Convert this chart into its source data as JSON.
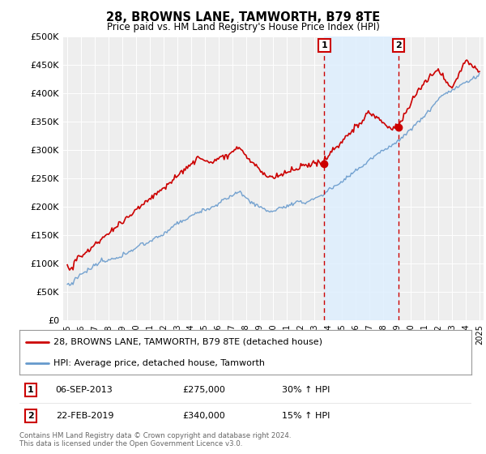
{
  "title": "28, BROWNS LANE, TAMWORTH, B79 8TE",
  "subtitle": "Price paid vs. HM Land Registry's House Price Index (HPI)",
  "legend_line1": "28, BROWNS LANE, TAMWORTH, B79 8TE (detached house)",
  "legend_line2": "HPI: Average price, detached house, Tamworth",
  "annotation1_label": "1",
  "annotation1_date": "06-SEP-2013",
  "annotation1_price": "£275,000",
  "annotation1_hpi": "30% ↑ HPI",
  "annotation2_label": "2",
  "annotation2_date": "22-FEB-2019",
  "annotation2_price": "£340,000",
  "annotation2_hpi": "15% ↑ HPI",
  "footer1": "Contains HM Land Registry data © Crown copyright and database right 2024.",
  "footer2": "This data is licensed under the Open Government Licence v3.0.",
  "red_color": "#cc0000",
  "blue_color": "#6699cc",
  "annotation_color": "#cc0000",
  "background_color": "#ffffff",
  "plot_bg_color": "#eeeeee",
  "hpi_fill_color": "#ddeeff",
  "sale1_x": 2013.71,
  "sale1_y": 275000,
  "sale2_x": 2019.12,
  "sale2_y": 340000,
  "xmin": 1995,
  "xmax": 2025,
  "ylim": [
    0,
    500000
  ],
  "yticks": [
    0,
    50000,
    100000,
    150000,
    200000,
    250000,
    300000,
    350000,
    400000,
    450000,
    500000
  ]
}
